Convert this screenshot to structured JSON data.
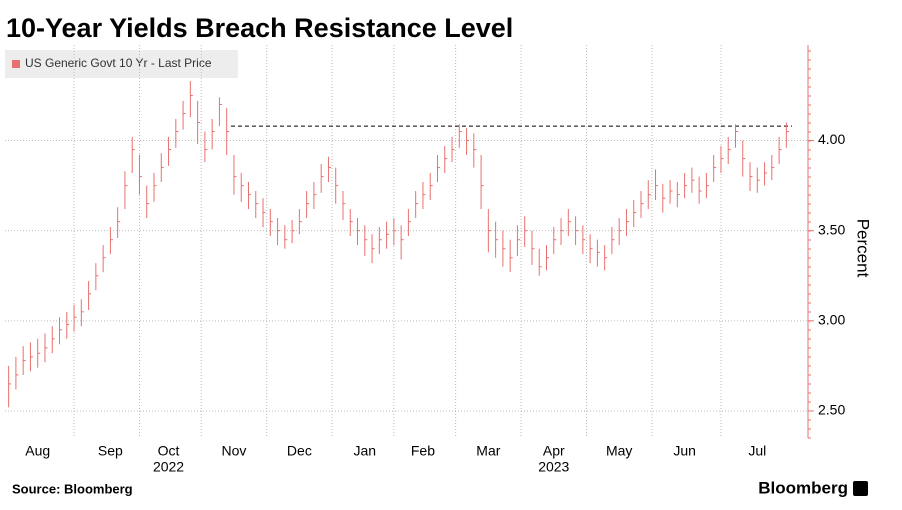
{
  "chart_data": {
    "type": "hlc",
    "title": "10-Year Yields Breach Resistance Level",
    "y_label": "Percent",
    "source": "Source: Bloomberg",
    "brand": "Bloomberg",
    "categories": [
      null,
      null,
      null,
      null,
      "Aug",
      null,
      null,
      null,
      null,
      null,
      null,
      null,
      null,
      null,
      "Sep",
      null,
      null,
      null,
      null,
      null,
      null,
      null,
      "Oct",
      null,
      null,
      null,
      null,
      null,
      null,
      null,
      null,
      "Nov",
      null,
      null,
      null,
      null,
      null,
      null,
      null,
      null,
      "Dec",
      null,
      null,
      null,
      null,
      null,
      null,
      null,
      null,
      "Jan",
      null,
      null,
      null,
      null,
      null,
      null,
      null,
      "Feb",
      null,
      null,
      null,
      null,
      null,
      null,
      null,
      null,
      "Mar",
      null,
      null,
      null,
      null,
      null,
      null,
      null,
      null,
      "Apr",
      null,
      null,
      null,
      null,
      null,
      null,
      null,
      null,
      "May",
      null,
      null,
      null,
      null,
      null,
      null,
      null,
      null,
      "Jun",
      null,
      null,
      null,
      null,
      null,
      null,
      null,
      null,
      null,
      "Jul",
      null,
      null,
      null,
      null
    ],
    "category_years": [
      null,
      null,
      null,
      null,
      null,
      null,
      null,
      null,
      null,
      null,
      null,
      null,
      null,
      null,
      null,
      null,
      null,
      null,
      null,
      null,
      null,
      null,
      "2022",
      null,
      null,
      null,
      null,
      null,
      null,
      null,
      null,
      null,
      null,
      null,
      null,
      null,
      null,
      null,
      null,
      null,
      null,
      null,
      null,
      null,
      null,
      null,
      null,
      null,
      null,
      null,
      null,
      null,
      null,
      null,
      null,
      null,
      null,
      null,
      null,
      null,
      null,
      null,
      null,
      null,
      null,
      null,
      null,
      null,
      null,
      null,
      null,
      null,
      null,
      null,
      null,
      "2023",
      null,
      null,
      null,
      null,
      null,
      null,
      null,
      null,
      null,
      null,
      null,
      null,
      null,
      null,
      null,
      null,
      null,
      null,
      null,
      null,
      null,
      null,
      null,
      null,
      null,
      null,
      null,
      null,
      null,
      null,
      null,
      null
    ],
    "series": [
      {
        "name": "US Generic Govt 10 Yr - Last Price",
        "color": "#e8706e",
        "high": [
          2.75,
          2.8,
          2.86,
          2.88,
          2.9,
          2.93,
          2.97,
          3.02,
          3.05,
          3.09,
          3.12,
          3.22,
          3.32,
          3.42,
          3.52,
          3.63,
          3.83,
          4.02,
          3.92,
          3.75,
          3.82,
          3.93,
          4.02,
          4.12,
          4.22,
          4.33,
          4.22,
          4.05,
          4.12,
          4.24,
          4.18,
          3.92,
          3.82,
          3.77,
          3.72,
          3.68,
          3.62,
          3.57,
          3.53,
          3.56,
          3.62,
          3.72,
          3.77,
          3.87,
          3.91,
          3.85,
          3.72,
          3.62,
          3.57,
          3.53,
          3.48,
          3.52,
          3.55,
          3.57,
          3.53,
          3.62,
          3.72,
          3.77,
          3.82,
          3.92,
          3.97,
          4.02,
          4.09,
          4.07,
          4.04,
          3.92,
          3.62,
          3.55,
          3.5,
          3.45,
          3.53,
          3.58,
          3.5,
          3.4,
          3.42,
          3.52,
          3.57,
          3.62,
          3.58,
          3.53,
          3.48,
          3.45,
          3.42,
          3.52,
          3.57,
          3.62,
          3.67,
          3.72,
          3.78,
          3.84,
          3.76,
          3.78,
          3.77,
          3.82,
          3.85,
          3.8,
          3.82,
          3.92,
          3.97,
          4.02,
          4.09,
          4.0,
          3.88,
          3.85,
          3.88,
          3.92,
          4.02,
          4.1
        ],
        "low": [
          2.52,
          2.62,
          2.7,
          2.72,
          2.74,
          2.77,
          2.82,
          2.87,
          2.9,
          2.94,
          2.97,
          3.06,
          3.17,
          3.27,
          3.37,
          3.46,
          3.62,
          3.82,
          3.7,
          3.57,
          3.66,
          3.77,
          3.86,
          3.96,
          4.06,
          4.13,
          3.98,
          3.88,
          3.95,
          4.08,
          3.92,
          3.7,
          3.66,
          3.62,
          3.57,
          3.52,
          3.47,
          3.42,
          3.4,
          3.43,
          3.48,
          3.57,
          3.62,
          3.71,
          3.77,
          3.65,
          3.56,
          3.47,
          3.42,
          3.36,
          3.32,
          3.37,
          3.4,
          3.42,
          3.34,
          3.47,
          3.57,
          3.62,
          3.67,
          3.77,
          3.82,
          3.88,
          3.96,
          3.92,
          3.85,
          3.62,
          3.38,
          3.35,
          3.3,
          3.27,
          3.36,
          3.41,
          3.31,
          3.25,
          3.28,
          3.37,
          3.42,
          3.47,
          3.42,
          3.37,
          3.32,
          3.3,
          3.28,
          3.37,
          3.42,
          3.47,
          3.52,
          3.57,
          3.62,
          3.67,
          3.6,
          3.65,
          3.63,
          3.68,
          3.71,
          3.65,
          3.68,
          3.77,
          3.82,
          3.87,
          3.96,
          3.8,
          3.72,
          3.71,
          3.75,
          3.78,
          3.87,
          3.96
        ],
        "close": [
          2.65,
          2.7,
          2.78,
          2.8,
          2.82,
          2.85,
          2.9,
          2.95,
          2.98,
          3.02,
          3.05,
          3.15,
          3.25,
          3.35,
          3.45,
          3.55,
          3.75,
          3.95,
          3.8,
          3.65,
          3.75,
          3.85,
          3.95,
          4.05,
          4.15,
          4.25,
          4.1,
          3.95,
          4.05,
          4.2,
          4.05,
          3.8,
          3.75,
          3.7,
          3.65,
          3.6,
          3.55,
          3.5,
          3.45,
          3.5,
          3.55,
          3.65,
          3.7,
          3.8,
          3.85,
          3.75,
          3.65,
          3.55,
          3.5,
          3.45,
          3.4,
          3.45,
          3.48,
          3.5,
          3.45,
          3.55,
          3.65,
          3.7,
          3.75,
          3.85,
          3.9,
          3.95,
          4.05,
          4.0,
          3.95,
          3.75,
          3.5,
          3.45,
          3.4,
          3.35,
          3.45,
          3.5,
          3.4,
          3.3,
          3.35,
          3.45,
          3.5,
          3.55,
          3.5,
          3.45,
          3.4,
          3.38,
          3.35,
          3.45,
          3.5,
          3.55,
          3.6,
          3.65,
          3.7,
          3.75,
          3.68,
          3.72,
          3.7,
          3.75,
          3.78,
          3.72,
          3.75,
          3.85,
          3.9,
          3.95,
          4.05,
          3.9,
          3.8,
          3.78,
          3.82,
          3.85,
          3.95,
          4.05
        ]
      }
    ],
    "resistance_level": 4.08,
    "ylim": [
      2.35,
      4.53
    ],
    "yticks": [
      {
        "value": 2.5,
        "label": "2.50"
      },
      {
        "value": 3,
        "label": "3.00"
      },
      {
        "value": 3.5,
        "label": "3.50"
      },
      {
        "value": 4,
        "label": "4.00"
      }
    ],
    "grid": true,
    "legend": "top-left"
  }
}
